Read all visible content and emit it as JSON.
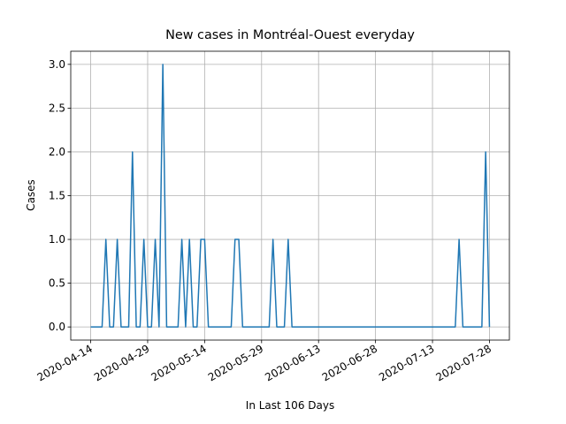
{
  "chart_data": {
    "type": "line",
    "title": "New cases in Montréal-Ouest everyday",
    "x_label": "In Last 106 Days",
    "y_label": "Cases",
    "color": "#1f77b4",
    "grid": true,
    "x": [
      "2020-04-14",
      "2020-04-15",
      "2020-04-16",
      "2020-04-17",
      "2020-04-18",
      "2020-04-19",
      "2020-04-20",
      "2020-04-21",
      "2020-04-22",
      "2020-04-23",
      "2020-04-24",
      "2020-04-25",
      "2020-04-26",
      "2020-04-27",
      "2020-04-28",
      "2020-04-29",
      "2020-04-30",
      "2020-05-01",
      "2020-05-02",
      "2020-05-03",
      "2020-05-04",
      "2020-05-05",
      "2020-05-06",
      "2020-05-07",
      "2020-05-08",
      "2020-05-09",
      "2020-05-10",
      "2020-05-11",
      "2020-05-12",
      "2020-05-13",
      "2020-05-14",
      "2020-05-15",
      "2020-05-16",
      "2020-05-17",
      "2020-05-18",
      "2020-05-19",
      "2020-05-20",
      "2020-05-21",
      "2020-05-22",
      "2020-05-23",
      "2020-05-24",
      "2020-05-25",
      "2020-05-26",
      "2020-05-27",
      "2020-05-28",
      "2020-05-29",
      "2020-05-30",
      "2020-05-31",
      "2020-06-01",
      "2020-06-02",
      "2020-06-03",
      "2020-06-04",
      "2020-06-05",
      "2020-06-06",
      "2020-06-07",
      "2020-06-08",
      "2020-06-09",
      "2020-06-10",
      "2020-06-11",
      "2020-06-12",
      "2020-06-13",
      "2020-06-14",
      "2020-06-15",
      "2020-06-16",
      "2020-06-17",
      "2020-06-18",
      "2020-06-19",
      "2020-06-20",
      "2020-06-21",
      "2020-06-22",
      "2020-06-23",
      "2020-06-24",
      "2020-06-25",
      "2020-06-26",
      "2020-06-27",
      "2020-06-28",
      "2020-06-29",
      "2020-06-30",
      "2020-07-01",
      "2020-07-02",
      "2020-07-03",
      "2020-07-04",
      "2020-07-05",
      "2020-07-06",
      "2020-07-07",
      "2020-07-08",
      "2020-07-09",
      "2020-07-10",
      "2020-07-11",
      "2020-07-12",
      "2020-07-13",
      "2020-07-14",
      "2020-07-15",
      "2020-07-16",
      "2020-07-17",
      "2020-07-18",
      "2020-07-19",
      "2020-07-20",
      "2020-07-21",
      "2020-07-22",
      "2020-07-23",
      "2020-07-24",
      "2020-07-25",
      "2020-07-26",
      "2020-07-27",
      "2020-07-28"
    ],
    "values": [
      0,
      0,
      0,
      0,
      1,
      0,
      0,
      1,
      0,
      0,
      0,
      2,
      0,
      0,
      1,
      0,
      0,
      1,
      0,
      3,
      0,
      0,
      0,
      0,
      1,
      0,
      1,
      0,
      0,
      1,
      1,
      0,
      0,
      0,
      0,
      0,
      0,
      0,
      1,
      1,
      0,
      0,
      0,
      0,
      0,
      0,
      0,
      0,
      1,
      0,
      0,
      0,
      1,
      0,
      0,
      0,
      0,
      0,
      0,
      0,
      0,
      0,
      0,
      0,
      0,
      0,
      0,
      0,
      0,
      0,
      0,
      0,
      0,
      0,
      0,
      0,
      0,
      0,
      0,
      0,
      0,
      0,
      0,
      0,
      0,
      0,
      0,
      0,
      0,
      0,
      0,
      0,
      0,
      0,
      0,
      0,
      0,
      1,
      0,
      0,
      0,
      0,
      0,
      0,
      2,
      0
    ],
    "xlim": [
      "2020-04-08T18:00",
      "2020-08-02T06:00"
    ],
    "xticks": [
      "2020-04-14",
      "2020-04-29",
      "2020-05-14",
      "2020-05-29",
      "2020-06-13",
      "2020-06-28",
      "2020-07-13",
      "2020-07-28"
    ],
    "ylim": [
      -0.15,
      3.15
    ],
    "yticks": [
      {
        "value": 0,
        "label": "0.0"
      },
      {
        "value": 0.5,
        "label": "0.5"
      },
      {
        "value": 1,
        "label": "1.0"
      },
      {
        "value": 1.5,
        "label": "1.5"
      },
      {
        "value": 2,
        "label": "2.0"
      },
      {
        "value": 2.5,
        "label": "2.5"
      },
      {
        "value": 3,
        "label": "3.0"
      }
    ]
  }
}
